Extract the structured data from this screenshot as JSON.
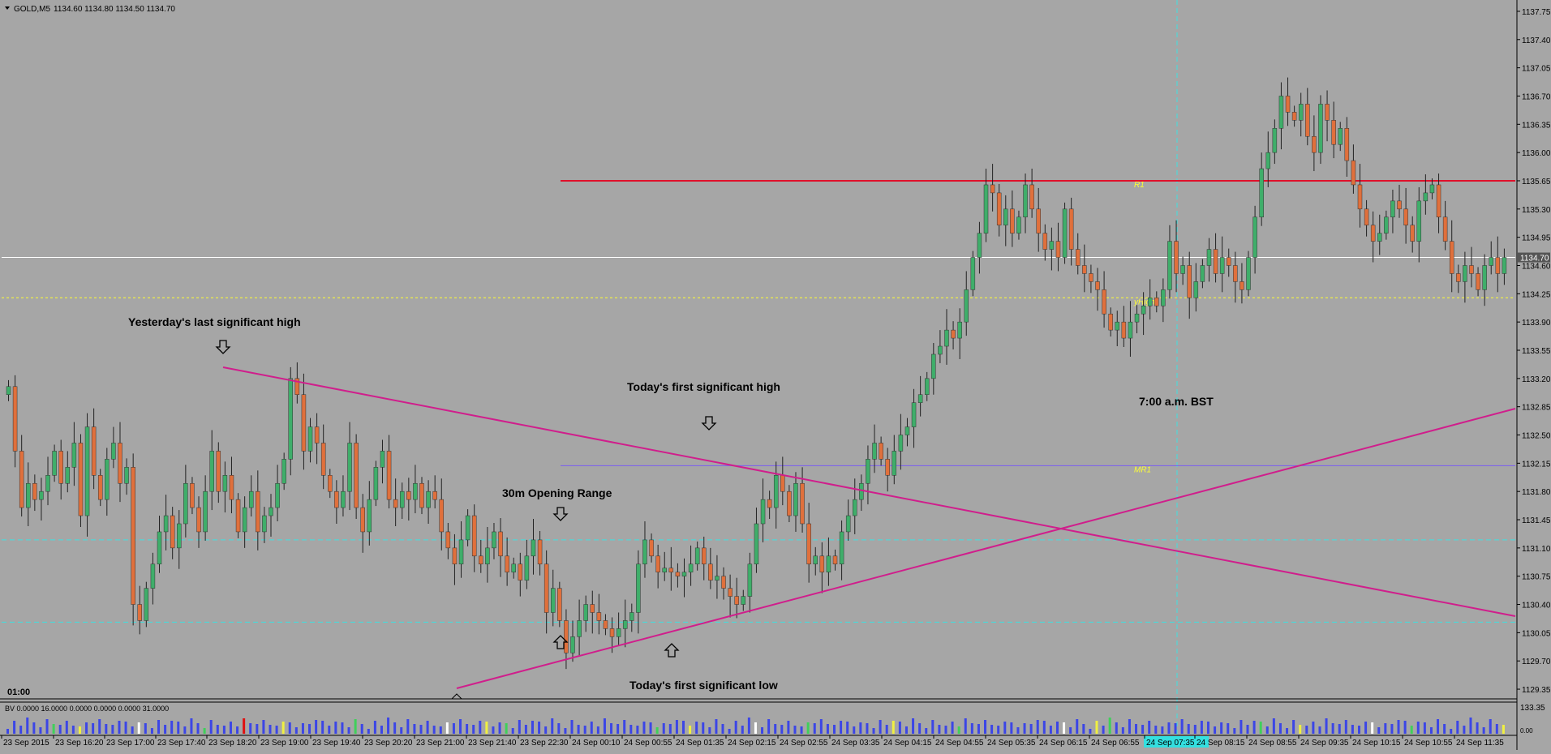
{
  "header": {
    "symbol": "GOLD,M5",
    "ohlc": "1134.60 1134.80 1134.50 1134.70"
  },
  "colors": {
    "background": "#a6a6a6",
    "bull": "#3fae6a",
    "bear": "#e0703c",
    "trendline": "#d01e8c",
    "r1_line": "#e0102a",
    "mr1_line": "#7a5ef0",
    "current_price_line": "#ffffff",
    "yhigh_line": "#ffff33",
    "range_lines": "#40e0e0",
    "volume_bar": "#3c46e6"
  },
  "chart_data": {
    "type": "candlestick",
    "y_ticks": [
      "1137.75",
      "1137.40",
      "1137.05",
      "1136.70",
      "1136.35",
      "1136.00",
      "1135.65",
      "1135.30",
      "1134.95",
      "1134.70",
      "1134.60",
      "1134.25",
      "1133.90",
      "1133.55",
      "1133.20",
      "1132.85",
      "1132.50",
      "1132.15",
      "1131.80",
      "1131.45",
      "1131.10",
      "1130.75",
      "1130.40",
      "1130.05",
      "1129.70",
      "1129.35"
    ],
    "ylim": [
      1129.25,
      1137.85
    ],
    "current_price": "1134.70",
    "x_ticks": [
      "23 Sep 2015",
      "23 Sep 16:20",
      "23 Sep 17:00",
      "23 Sep 17:40",
      "23 Sep 18:20",
      "23 Sep 19:00",
      "23 Sep 19:40",
      "23 Sep 20:20",
      "23 Sep 21:00",
      "23 Sep 21:40",
      "23 Sep 22:30",
      "24 Sep 00:10",
      "24 Sep 00:55",
      "24 Sep 01:35",
      "24 Sep 02:15",
      "24 Sep 02:55",
      "24 Sep 03:35",
      "24 Sep 04:15",
      "24 Sep 04:55",
      "24 Sep 05:35",
      "24 Sep 06:15",
      "24 Sep 06:55",
      "24 Sep 07:35",
      "24 Sep 08:15",
      "24 Sep 08:55",
      "24 Sep 09:35",
      "24 Sep 10:15",
      "24 Sep 10:55",
      "24 Sep 11:35"
    ],
    "highlighted_x_tick": "24 Sep 07:35",
    "levels": [
      {
        "label": "R1",
        "price": 1135.65,
        "color": "#e0102a"
      },
      {
        "label": "MR1",
        "price": 1132.12,
        "color": "#7a5ef0"
      },
      {
        "label": "yHigh",
        "price": 1134.2,
        "color": "#ffff33"
      }
    ],
    "range_levels": [
      1131.2,
      1130.18
    ],
    "annotations": {
      "session_start": "01:00",
      "yesterday_high": "Yesterday's last significant high",
      "opening_range": "30m Opening Range",
      "today_high": "Today's first significant high",
      "today_low": "Today's first significant low",
      "bst_line": "7:00 a.m. BST"
    },
    "closes": [
      1133.1,
      1132.3,
      1131.6,
      1131.9,
      1131.7,
      1131.8,
      1132.0,
      1132.3,
      1131.9,
      1132.1,
      1132.4,
      1131.5,
      1132.6,
      1132.0,
      1131.7,
      1132.2,
      1132.4,
      1131.9,
      1132.1,
      1130.4,
      1130.2,
      1130.6,
      1130.9,
      1131.3,
      1131.5,
      1131.1,
      1131.4,
      1131.9,
      1131.6,
      1131.3,
      1131.8,
      1132.3,
      1131.8,
      1132.0,
      1131.7,
      1131.3,
      1131.6,
      1131.8,
      1131.3,
      1131.5,
      1131.6,
      1131.9,
      1132.2,
      1133.2,
      1133.0,
      1132.3,
      1132.6,
      1132.4,
      1132.0,
      1131.8,
      1131.6,
      1131.8,
      1132.4,
      1131.6,
      1131.3,
      1131.7,
      1132.1,
      1132.3,
      1131.7,
      1131.6,
      1131.8,
      1131.7,
      1131.9,
      1131.6,
      1131.8,
      1131.7,
      1131.3,
      1131.1,
      1130.9,
      1131.2,
      1131.5,
      1131.0,
      1130.9,
      1131.1,
      1131.3,
      1131.0,
      1130.8,
      1130.9,
      1130.7,
      1131.0,
      1131.2,
      1130.9,
      1130.3,
      1130.6,
      1130.2,
      1129.8,
      1130.0,
      1130.2,
      1130.4,
      1130.3,
      1130.2,
      1130.1,
      1130.0,
      1130.1,
      1130.2,
      1130.3,
      1130.9,
      1131.2,
      1131.0,
      1130.8,
      1130.85,
      1130.8,
      1130.75,
      1130.8,
      1130.9,
      1131.1,
      1130.9,
      1130.7,
      1130.75,
      1130.6,
      1130.5,
      1130.4,
      1130.5,
      1130.9,
      1131.4,
      1131.7,
      1131.6,
      1132.0,
      1131.8,
      1131.5,
      1131.9,
      1131.4,
      1130.9,
      1131.0,
      1130.8,
      1131.0,
      1130.9,
      1131.3,
      1131.5,
      1131.7,
      1131.9,
      1132.2,
      1132.4,
      1132.2,
      1132.0,
      1132.3,
      1132.5,
      1132.6,
      1132.9,
      1133.0,
      1133.2,
      1133.5,
      1133.6,
      1133.8,
      1133.7,
      1133.9,
      1134.3,
      1134.7,
      1135.0,
      1135.6,
      1135.5,
      1135.1,
      1135.3,
      1135.0,
      1135.2,
      1135.6,
      1135.3,
      1135.0,
      1134.8,
      1134.9,
      1134.7,
      1135.3,
      1134.8,
      1134.6,
      1134.5,
      1134.4,
      1134.3,
      1134.0,
      1133.8,
      1133.9,
      1133.7,
      1133.9,
      1134.0,
      1134.1,
      1134.2,
      1134.1,
      1134.3,
      1134.9,
      1134.5,
      1134.6,
      1134.2,
      1134.4,
      1134.6,
      1134.8,
      1134.5,
      1134.7,
      1134.6,
      1134.4,
      1134.3,
      1134.7,
      1135.2,
      1135.8,
      1136.0,
      1136.3,
      1136.7,
      1136.5,
      1136.4,
      1136.6,
      1136.2,
      1136.0,
      1136.6,
      1136.4,
      1136.1,
      1136.3,
      1135.9,
      1135.6,
      1135.3,
      1135.1,
      1134.9,
      1135.0,
      1135.2,
      1135.4,
      1135.3,
      1135.1,
      1134.9,
      1135.4,
      1135.5,
      1135.6,
      1135.2,
      1134.9,
      1134.5,
      1134.4,
      1134.6,
      1134.5,
      1134.3,
      1134.6,
      1134.7,
      1134.5,
      1134.7
    ],
    "volume_label": "BV 0.0000 16.0000 0.0000 0.0000 0.0000 31.0000",
    "volume_axis_top": "133.35",
    "volume_axis_bottom": "0.00"
  }
}
